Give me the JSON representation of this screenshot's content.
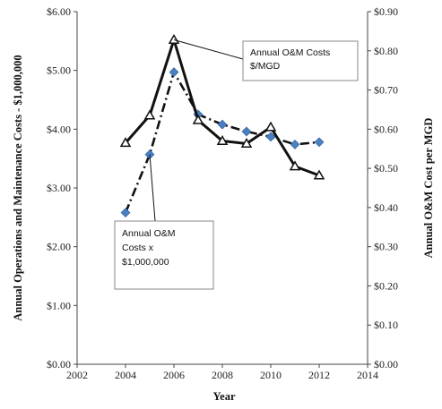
{
  "chart_data": {
    "type": "line",
    "xlabel": "Year",
    "ylabel_left": "Annual Operations and Maintenance Costs - $1,000,000",
    "ylabel_right": "Annual O&M Cost per MGD",
    "xlim": [
      2002,
      2014
    ],
    "x_ticks": [
      "2002",
      "2004",
      "2006",
      "2008",
      "2010",
      "2012",
      "2014"
    ],
    "ylim_left": [
      0,
      6
    ],
    "y_left_ticks": [
      "$0.00",
      "$1.00",
      "$2.00",
      "$3.00",
      "$4.00",
      "$5.00",
      "$6.00"
    ],
    "ylim_right": [
      0,
      0.9
    ],
    "y_right_ticks": [
      "$0.00",
      "$0.10",
      "$0.20",
      "$0.30",
      "$0.40",
      "$0.50",
      "$0.60",
      "$0.70",
      "$0.80",
      "$0.90"
    ],
    "grid": false,
    "series": [
      {
        "name": "Annual O&M Costs x $1,000,000",
        "axis": "left",
        "style": "dash-dot",
        "marker": "diamond",
        "color": "#4a7fc0",
        "line_color": "#111111",
        "x": [
          2004,
          2005,
          2006,
          2007,
          2008,
          2009,
          2010,
          2011,
          2012
        ],
        "y": [
          2.58,
          3.57,
          4.97,
          4.25,
          4.08,
          3.96,
          3.87,
          3.74,
          3.78
        ]
      },
      {
        "name": "Annual O&M Costs $/MGD",
        "axis": "right",
        "style": "solid",
        "marker": "triangle",
        "color": "#111111",
        "x": [
          2004,
          2005,
          2006,
          2007,
          2008,
          2009,
          2010,
          2011,
          2012
        ],
        "y": [
          0.565,
          0.635,
          0.828,
          0.623,
          0.57,
          0.563,
          0.605,
          0.505,
          0.482
        ]
      }
    ],
    "annotations": [
      {
        "lines": [
          "Annual O&M Costs",
          "$/MGD"
        ],
        "points_to_series": 1,
        "points_to_index": 2
      },
      {
        "lines": [
          "Annual O&M",
          "Costs x",
          "$1,000,000"
        ],
        "points_to_series": 0,
        "points_to_index": 1
      }
    ]
  }
}
